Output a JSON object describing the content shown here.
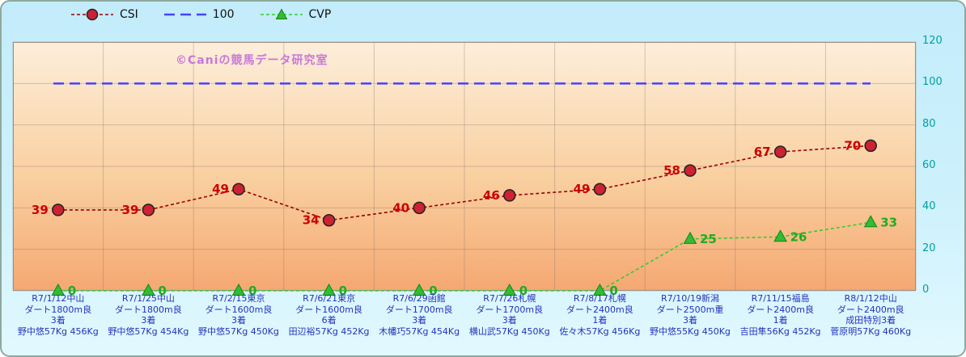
{
  "watermark": "©Caniの競馬データ研究室",
  "chart_data": {
    "type": "line",
    "title": "",
    "xlabel": "",
    "ylabel": "",
    "ylim": [
      0,
      120
    ],
    "yticks": [
      0,
      20,
      40,
      60,
      80,
      100,
      120
    ],
    "grid": true,
    "legend_position": "top-left",
    "grid_color": "rgba(130,115,105,0.35)",
    "ytick_color": "#00a0a0",
    "xlabel_color": "#2233bb",
    "categories": [
      [
        "R7/1/12中山",
        "ダート1800m良",
        "3着",
        "野中悠57Kg 456Kg"
      ],
      [
        "R7/1/25中山",
        "ダート1800m良",
        "3着",
        "野中悠57Kg 454Kg"
      ],
      [
        "R7/2/15東京",
        "ダート1600m良",
        "3着",
        "野中悠57Kg 450Kg"
      ],
      [
        "R7/6/21東京",
        "ダート1600m良",
        "6着",
        "田辺裕57Kg 452Kg"
      ],
      [
        "R7/6/29函館",
        "ダート1700m良",
        "3着",
        "木幡巧57Kg 454Kg"
      ],
      [
        "R7/7/26札幌",
        "ダート1700m良",
        "3着",
        "横山武57Kg 450Kg"
      ],
      [
        "R7/8/17札幌",
        "ダート2400m良",
        "1着",
        "佐々木57Kg 456Kg"
      ],
      [
        "R7/10/19新潟",
        "ダート2500m重",
        "3着",
        "野中悠55Kg 450Kg"
      ],
      [
        "R7/11/15福島",
        "ダート2400m良",
        "1着",
        "吉田隼56Kg 452Kg"
      ],
      [
        "R8/1/12中山",
        "ダート2400m良",
        "成田特別3着",
        "菅原明57Kg 460Kg"
      ]
    ],
    "series": [
      {
        "name": "CSI",
        "values": [
          39,
          39,
          49,
          34,
          40,
          46,
          49,
          58,
          67,
          70
        ],
        "color": "#990000",
        "dash": "4,3",
        "marker": "circle",
        "marker_fill": "#cc2233",
        "marker_stroke": "#222222",
        "label_color": "#cc0000",
        "label_side": "left",
        "show_labels": true
      },
      {
        "name": "100",
        "type": "hline",
        "value": 100,
        "color": "#4444ff",
        "dash": "13,7",
        "marker": "none",
        "show_labels": false
      },
      {
        "name": "CVP",
        "values": [
          0,
          0,
          0,
          0,
          0,
          0,
          0,
          25,
          26,
          33
        ],
        "color": "#33cc33",
        "dash": "4,3",
        "marker": "triangle",
        "marker_fill": "#33bb33",
        "marker_stroke": "#118811",
        "label_color": "#22aa22",
        "label_side": "right",
        "show_labels": true
      }
    ]
  }
}
